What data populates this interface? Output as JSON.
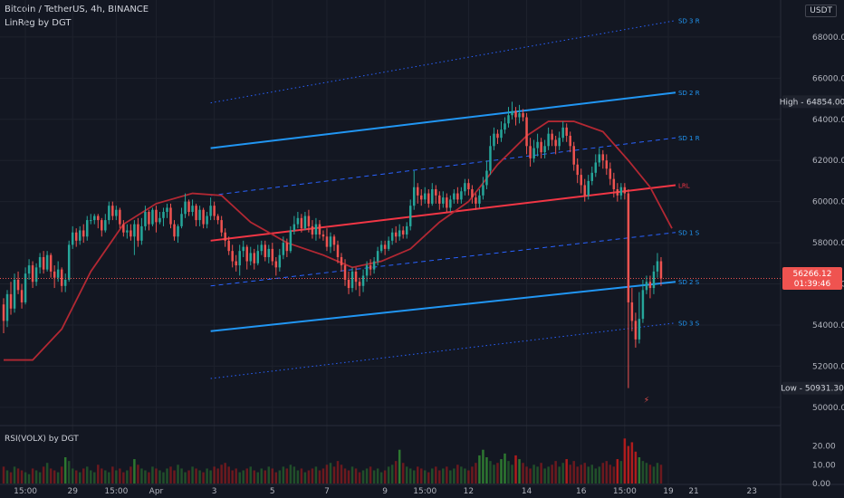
{
  "header": {
    "symbol_line": "Bitcoin / TetherUS, 4h, BINANCE",
    "indicator_line": "LinReg by DGT",
    "currency": "USDT"
  },
  "rsi_panel": {
    "title": "RSI(VOLX) by DGT",
    "tick_labels": [
      "20.00",
      "10.00",
      "0.00"
    ]
  },
  "colors": {
    "background": "#131722",
    "up": "#26a69a",
    "down": "#ef5350",
    "regression_line": "#f23645",
    "sd2_line": "#2196f3",
    "dashed": "#2962ff",
    "ma_line": "#b22833",
    "grid": "#1e222d"
  },
  "chart_data": {
    "type": "candlestick",
    "title": "Bitcoin / TetherUS, 4h, BINANCE",
    "y_ticks": [
      50000,
      52000,
      54000,
      56000,
      58000,
      60000,
      62000,
      64000,
      66000,
      68000
    ],
    "y_tick_labels": [
      "50000.00",
      "52000.00",
      "54000.00",
      "56000.00",
      "58000.00",
      "60000.00",
      "62000.00",
      "64000.00",
      "66000.00",
      "68000.00"
    ],
    "ylim": [
      49200,
      69800
    ],
    "x_range": [
      0,
      184
    ],
    "x_ticks": [
      {
        "x": 6,
        "label": "15:00"
      },
      {
        "x": 19,
        "label": "29"
      },
      {
        "x": 31,
        "label": "15:00"
      },
      {
        "x": 42,
        "label": "Apr"
      },
      {
        "x": 58,
        "label": "3"
      },
      {
        "x": 74,
        "label": "5"
      },
      {
        "x": 89,
        "label": "7"
      },
      {
        "x": 105,
        "label": "9"
      },
      {
        "x": 116,
        "label": "15:00"
      },
      {
        "x": 128,
        "label": "12"
      },
      {
        "x": 144,
        "label": "14"
      },
      {
        "x": 159,
        "label": "16"
      },
      {
        "x": 171,
        "label": "15:00"
      },
      {
        "x": 183,
        "label": "19"
      }
    ],
    "x_ticks_future": [
      {
        "label": "21"
      },
      {
        "label": "23"
      }
    ],
    "channel": {
      "x_start": 57,
      "x_end": 185,
      "lines": [
        {
          "name": "SD 3 R",
          "y1": 64800,
          "y2": 68800,
          "style": "dotted"
        },
        {
          "name": "SD 2 R",
          "y1": 62600,
          "y2": 65300,
          "style": "solid"
        },
        {
          "name": "SD 1 R",
          "y1": 60300,
          "y2": 63100,
          "style": "dashed"
        },
        {
          "name": "LRL",
          "y1": 58100,
          "y2": 60800,
          "style": "solid"
        },
        {
          "name": "SD 1 S",
          "y1": 55900,
          "y2": 58500,
          "style": "dashed"
        },
        {
          "name": "SD 2 S",
          "y1": 53700,
          "y2": 56100,
          "style": "solid"
        },
        {
          "name": "SD 3 S",
          "y1": 51400,
          "y2": 54100,
          "style": "dotted"
        }
      ]
    },
    "markers": {
      "high": {
        "label": "High",
        "value": "64854.00",
        "y": 64854
      },
      "low": {
        "label": "Low",
        "value": "50931.30",
        "y": 50931
      },
      "last": {
        "price": "56266.12",
        "countdown": "01:39:46",
        "y": 56266
      }
    },
    "ma_points": [
      [
        0,
        52300
      ],
      [
        8,
        52300
      ],
      [
        16,
        53800
      ],
      [
        24,
        56600
      ],
      [
        33,
        58900
      ],
      [
        42,
        59900
      ],
      [
        52,
        60400
      ],
      [
        60,
        60300
      ],
      [
        68,
        59000
      ],
      [
        78,
        58000
      ],
      [
        88,
        57400
      ],
      [
        96,
        56800
      ],
      [
        104,
        57100
      ],
      [
        112,
        57700
      ],
      [
        120,
        59000
      ],
      [
        128,
        60000
      ],
      [
        136,
        61800
      ],
      [
        144,
        63200
      ],
      [
        150,
        63900
      ],
      [
        157,
        63900
      ],
      [
        165,
        63400
      ],
      [
        172,
        62000
      ],
      [
        178,
        60700
      ],
      [
        184,
        58700
      ]
    ],
    "candles": [
      [
        55000,
        54200,
        55300,
        53600
      ],
      [
        54200,
        55500,
        55700,
        53900
      ],
      [
        55500,
        54800,
        56100,
        54500
      ],
      [
        54800,
        56200,
        56500,
        54600
      ],
      [
        56200,
        55700,
        56600,
        55500
      ],
      [
        55700,
        55100,
        56000,
        54800
      ],
      [
        55100,
        56500,
        56800,
        55000
      ],
      [
        56500,
        56900,
        57200,
        56200
      ],
      [
        56900,
        56100,
        57100,
        55800
      ],
      [
        56100,
        56800,
        57000,
        55900
      ],
      [
        56800,
        57300,
        57500,
        56500
      ],
      [
        57300,
        56700,
        57600,
        56500
      ],
      [
        56700,
        57400,
        57600,
        56600
      ],
      [
        57400,
        56600,
        57500,
        56300
      ],
      [
        56600,
        56300,
        56900,
        55800
      ],
      [
        56300,
        56700,
        57100,
        56100
      ],
      [
        56700,
        55900,
        56800,
        55600
      ],
      [
        55900,
        56200,
        56500,
        55600
      ],
      [
        56200,
        57900,
        58100,
        56100
      ],
      [
        57900,
        58500,
        58800,
        57700
      ],
      [
        58500,
        58100,
        58700,
        57800
      ],
      [
        58100,
        58600,
        58800,
        57900
      ],
      [
        58600,
        58300,
        58900,
        58000
      ],
      [
        58300,
        59100,
        59300,
        58100
      ],
      [
        59100,
        59100,
        59400,
        58900
      ],
      [
        59100,
        59300,
        59400,
        58900
      ],
      [
        59300,
        59100,
        59400,
        58700
      ],
      [
        59100,
        58600,
        59200,
        58300
      ],
      [
        58600,
        59100,
        59400,
        58500
      ],
      [
        59100,
        59800,
        60000,
        58900
      ],
      [
        59800,
        59300,
        60000,
        59100
      ],
      [
        59300,
        59600,
        59800,
        59100
      ],
      [
        59600,
        58900,
        59700,
        58700
      ],
      [
        58900,
        58500,
        59100,
        58300
      ],
      [
        58500,
        58600,
        58900,
        58200
      ],
      [
        58600,
        58300,
        58900,
        58100
      ],
      [
        58300,
        58900,
        59100,
        57400
      ],
      [
        58900,
        58100,
        59200,
        57800
      ],
      [
        58100,
        58800,
        59200,
        57900
      ],
      [
        58800,
        59500,
        59800,
        58600
      ],
      [
        59500,
        58900,
        59600,
        58600
      ],
      [
        58900,
        59600,
        59700,
        58800
      ],
      [
        59600,
        59000,
        59800,
        58500
      ],
      [
        59000,
        59200,
        59500,
        58900
      ],
      [
        59200,
        59500,
        59700,
        58800
      ],
      [
        59500,
        59700,
        59900,
        59200
      ],
      [
        59700,
        58900,
        59900,
        58700
      ],
      [
        58900,
        58300,
        59100,
        58100
      ],
      [
        58300,
        58800,
        58900,
        58000
      ],
      [
        58800,
        59400,
        59700,
        58700
      ],
      [
        59400,
        60000,
        60400,
        59200
      ],
      [
        60000,
        59500,
        60100,
        59300
      ],
      [
        59500,
        59800,
        60100,
        59300
      ],
      [
        59800,
        59100,
        59900,
        58800
      ],
      [
        59100,
        59600,
        59800,
        58800
      ],
      [
        59600,
        58900,
        59700,
        58700
      ],
      [
        58900,
        59300,
        59500,
        58700
      ],
      [
        59300,
        59800,
        60200,
        59100
      ],
      [
        59800,
        59300,
        60000,
        59100
      ],
      [
        59300,
        59100,
        59400,
        58900
      ],
      [
        59100,
        58500,
        59300,
        58300
      ],
      [
        58500,
        58100,
        58700,
        57800
      ],
      [
        58100,
        57600,
        58300,
        57400
      ],
      [
        57600,
        57100,
        57900,
        56800
      ],
      [
        57100,
        56900,
        57400,
        56600
      ],
      [
        56900,
        57600,
        57900,
        56400
      ],
      [
        57600,
        57800,
        58100,
        57300
      ],
      [
        57800,
        57100,
        57900,
        56700
      ],
      [
        57100,
        57500,
        57800,
        56900
      ],
      [
        57500,
        57000,
        57700,
        56700
      ],
      [
        57000,
        57600,
        57900,
        56900
      ],
      [
        57600,
        57900,
        58100,
        57400
      ],
      [
        57900,
        57300,
        58100,
        57100
      ],
      [
        57300,
        57700,
        57900,
        57000
      ],
      [
        57700,
        57100,
        58000,
        56900
      ],
      [
        57100,
        56800,
        57300,
        56400
      ],
      [
        56800,
        57400,
        57700,
        56600
      ],
      [
        57400,
        58000,
        58300,
        57200
      ],
      [
        58000,
        57600,
        58200,
        57300
      ],
      [
        57600,
        58600,
        58800,
        57500
      ],
      [
        58600,
        58900,
        59300,
        58400
      ],
      [
        58900,
        59200,
        59500,
        58700
      ],
      [
        59200,
        58700,
        59400,
        58500
      ],
      [
        58700,
        59300,
        59500,
        58600
      ],
      [
        59300,
        58800,
        59600,
        58500
      ],
      [
        58800,
        58400,
        59100,
        58200
      ],
      [
        58400,
        58900,
        59200,
        58100
      ],
      [
        58900,
        58400,
        59100,
        58200
      ],
      [
        58400,
        58300,
        58600,
        58100
      ],
      [
        58300,
        57800,
        58700,
        57600
      ],
      [
        57800,
        58300,
        58500,
        57500
      ],
      [
        58300,
        57900,
        58400,
        57600
      ],
      [
        57900,
        57300,
        58100,
        57000
      ],
      [
        57300,
        56900,
        57500,
        56600
      ],
      [
        56900,
        56200,
        57200,
        55900
      ],
      [
        56200,
        55800,
        56600,
        55500
      ],
      [
        55800,
        56600,
        56800,
        55600
      ],
      [
        56600,
        56100,
        56800,
        55700
      ],
      [
        56100,
        55900,
        56300,
        55400
      ],
      [
        55900,
        56400,
        56700,
        55600
      ],
      [
        56400,
        56900,
        57100,
        56100
      ],
      [
        56900,
        56700,
        57200,
        56400
      ],
      [
        56700,
        57100,
        57300,
        56500
      ],
      [
        57100,
        57600,
        57800,
        56900
      ],
      [
        57600,
        57900,
        58100,
        57500
      ],
      [
        57900,
        57700,
        58100,
        57400
      ],
      [
        57700,
        58100,
        58300,
        57600
      ],
      [
        58100,
        58500,
        58700,
        57900
      ],
      [
        58500,
        58300,
        58800,
        58000
      ],
      [
        58300,
        58600,
        58900,
        58100
      ],
      [
        58600,
        58400,
        58800,
        58200
      ],
      [
        58400,
        58800,
        59000,
        58200
      ],
      [
        58800,
        59800,
        60100,
        58600
      ],
      [
        59800,
        60700,
        61500,
        59600
      ],
      [
        60700,
        60300,
        60900,
        59900
      ],
      [
        60300,
        60100,
        60600,
        59800
      ],
      [
        60100,
        60400,
        60700,
        59900
      ],
      [
        60400,
        59900,
        60600,
        59700
      ],
      [
        59900,
        60600,
        60900,
        59800
      ],
      [
        60600,
        60300,
        60800,
        59900
      ],
      [
        60300,
        59900,
        60500,
        59600
      ],
      [
        59900,
        60200,
        60500,
        59700
      ],
      [
        60200,
        59700,
        60400,
        59500
      ],
      [
        59700,
        60100,
        60300,
        59500
      ],
      [
        60100,
        60400,
        60600,
        59900
      ],
      [
        60400,
        60100,
        60700,
        59900
      ],
      [
        60100,
        60500,
        60700,
        59900
      ],
      [
        60500,
        60900,
        61100,
        60300
      ],
      [
        60900,
        60600,
        61100,
        60300
      ],
      [
        60600,
        60200,
        60800,
        59900
      ],
      [
        60200,
        59900,
        60400,
        59600
      ],
      [
        59900,
        60300,
        60600,
        59700
      ],
      [
        60300,
        60800,
        61200,
        60100
      ],
      [
        60800,
        61500,
        62000,
        60600
      ],
      [
        61500,
        62700,
        63200,
        61300
      ],
      [
        62700,
        63300,
        63600,
        62500
      ],
      [
        63300,
        63100,
        63500,
        62800
      ],
      [
        63100,
        63500,
        63900,
        62900
      ],
      [
        63500,
        63800,
        64100,
        63300
      ],
      [
        63800,
        64200,
        64600,
        63600
      ],
      [
        64200,
        64400,
        64854,
        64000
      ],
      [
        64400,
        64100,
        64600,
        63700
      ],
      [
        64100,
        64300,
        64700,
        63800
      ],
      [
        64300,
        64100,
        64500,
        63900
      ],
      [
        64100,
        62700,
        64300,
        62300
      ],
      [
        62700,
        62100,
        63100,
        61700
      ],
      [
        62100,
        62600,
        63000,
        61900
      ],
      [
        62600,
        62900,
        63300,
        62200
      ],
      [
        62900,
        62400,
        63100,
        62100
      ],
      [
        62400,
        62700,
        63000,
        62100
      ],
      [
        62700,
        63300,
        63600,
        62500
      ],
      [
        63300,
        63000,
        63500,
        62700
      ],
      [
        63000,
        62700,
        63200,
        62300
      ],
      [
        62700,
        63100,
        63400,
        62500
      ],
      [
        63100,
        63600,
        63900,
        62900
      ],
      [
        63600,
        63200,
        63800,
        62900
      ],
      [
        63200,
        62700,
        63400,
        62400
      ],
      [
        62700,
        61800,
        62900,
        61500
      ],
      [
        61800,
        61300,
        62100,
        60900
      ],
      [
        61300,
        60800,
        61600,
        60400
      ],
      [
        60800,
        60300,
        61100,
        60000
      ],
      [
        60300,
        61000,
        61300,
        60100
      ],
      [
        61000,
        61400,
        61700,
        60800
      ],
      [
        61400,
        61900,
        62300,
        61200
      ],
      [
        61900,
        62300,
        62600,
        61700
      ],
      [
        62300,
        62000,
        62500,
        61600
      ],
      [
        62000,
        61600,
        62300,
        61300
      ],
      [
        61600,
        61100,
        61900,
        60800
      ],
      [
        61100,
        60600,
        61400,
        60200
      ],
      [
        60600,
        60300,
        60900,
        60000
      ],
      [
        60300,
        60700,
        60900,
        60100
      ],
      [
        60700,
        60400,
        60900,
        60100
      ],
      [
        60400,
        55100,
        60600,
        50931
      ],
      [
        55100,
        54200,
        55800,
        53700
      ],
      [
        54200,
        53300,
        54600,
        52900
      ],
      [
        53300,
        54300,
        55600,
        53100
      ],
      [
        54300,
        55700,
        56200,
        54100
      ],
      [
        55700,
        56100,
        56400,
        55500
      ],
      [
        56100,
        55800,
        56400,
        55300
      ],
      [
        55800,
        56600,
        56900,
        55500
      ],
      [
        56600,
        57100,
        57500,
        56300
      ],
      [
        57100,
        56266,
        57300,
        55900
      ]
    ],
    "volume": [
      9,
      7,
      6,
      9,
      8,
      7,
      6,
      5,
      8,
      7,
      6,
      9,
      11,
      8,
      7,
      6,
      9,
      14,
      12,
      8,
      7,
      6,
      8,
      9,
      7,
      6,
      10,
      8,
      7,
      6,
      9,
      7,
      8,
      6,
      7,
      9,
      13,
      10,
      8,
      7,
      6,
      9,
      8,
      7,
      6,
      8,
      9,
      7,
      10,
      8,
      6,
      7,
      9,
      8,
      7,
      6,
      8,
      7,
      9,
      8,
      10,
      11,
      9,
      7,
      8,
      6,
      7,
      8,
      9,
      7,
      6,
      8,
      7,
      9,
      8,
      6,
      7,
      9,
      8,
      10,
      9,
      7,
      8,
      6,
      7,
      8,
      9,
      7,
      8,
      10,
      11,
      9,
      12,
      10,
      8,
      7,
      9,
      8,
      6,
      7,
      8,
      9,
      7,
      8,
      6,
      7,
      9,
      10,
      12,
      18,
      11,
      9,
      8,
      7,
      9,
      8,
      7,
      6,
      8,
      9,
      7,
      8,
      9,
      7,
      8,
      10,
      9,
      8,
      7,
      9,
      11,
      15,
      18,
      14,
      12,
      10,
      11,
      13,
      16,
      12,
      10,
      15,
      13,
      11,
      9,
      8,
      10,
      9,
      11,
      8,
      9,
      10,
      12,
      9,
      11,
      13,
      10,
      12,
      9,
      10,
      11,
      9,
      10,
      8,
      9,
      11,
      12,
      10,
      9,
      13,
      12,
      24,
      20,
      22,
      17,
      14,
      12,
      11,
      10,
      9,
      11,
      10,
      9
    ]
  }
}
